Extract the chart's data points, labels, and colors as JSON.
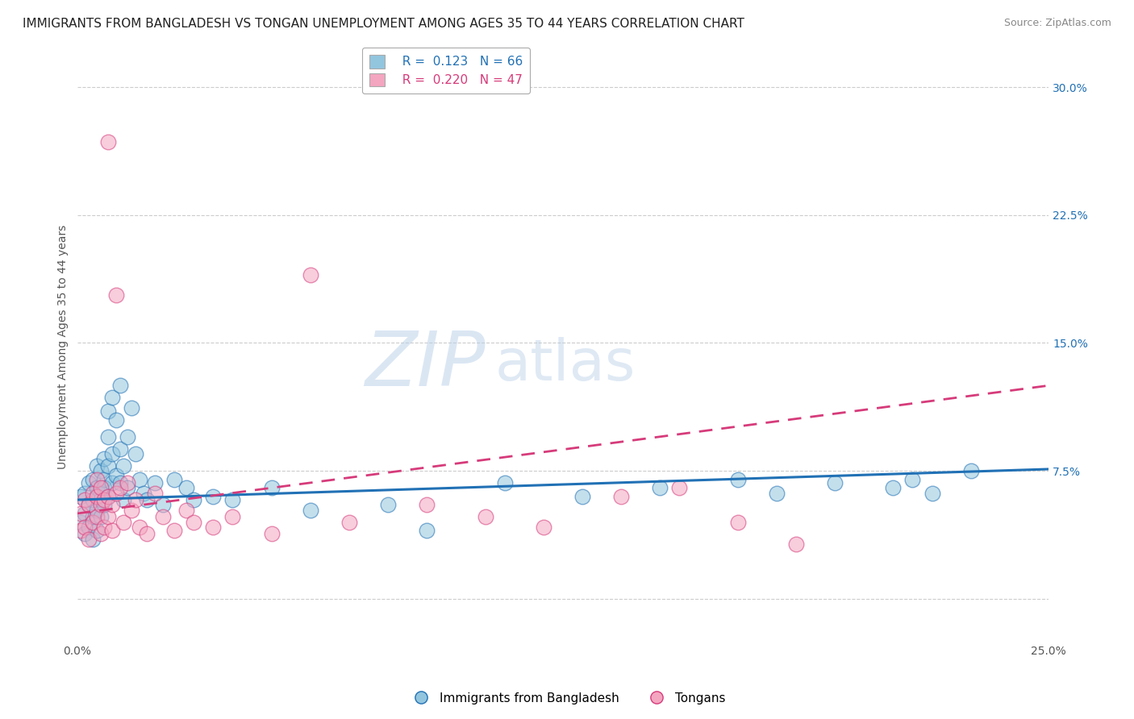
{
  "title": "IMMIGRANTS FROM BANGLADESH VS TONGAN UNEMPLOYMENT AMONG AGES 35 TO 44 YEARS CORRELATION CHART",
  "source": "Source: ZipAtlas.com",
  "ylabel": "Unemployment Among Ages 35 to 44 years",
  "xlim": [
    0.0,
    0.25
  ],
  "ylim": [
    -0.025,
    0.32
  ],
  "xticks": [
    0.0,
    0.05,
    0.1,
    0.15,
    0.2,
    0.25
  ],
  "xticklabels": [
    "0.0%",
    "",
    "",
    "",
    "",
    "25.0%"
  ],
  "ytick_positions": [
    0.0,
    0.075,
    0.15,
    0.225,
    0.3
  ],
  "yticklabels_right": [
    "",
    "7.5%",
    "15.0%",
    "22.5%",
    "30.0%"
  ],
  "legend1_r": "0.123",
  "legend1_n": "66",
  "legend2_r": "0.220",
  "legend2_n": "47",
  "color_blue": "#92c5de",
  "color_pink": "#f4a5c0",
  "color_blue_line": "#2171b5",
  "color_pink_line": "#d63b7a",
  "watermark_zip": "ZIP",
  "watermark_atlas": "atlas",
  "blue_scatter_x": [
    0.001,
    0.001,
    0.002,
    0.002,
    0.002,
    0.003,
    0.003,
    0.003,
    0.004,
    0.004,
    0.004,
    0.004,
    0.005,
    0.005,
    0.005,
    0.005,
    0.006,
    0.006,
    0.006,
    0.006,
    0.007,
    0.007,
    0.007,
    0.007,
    0.008,
    0.008,
    0.008,
    0.008,
    0.009,
    0.009,
    0.009,
    0.01,
    0.01,
    0.011,
    0.011,
    0.011,
    0.012,
    0.012,
    0.013,
    0.013,
    0.014,
    0.015,
    0.016,
    0.017,
    0.018,
    0.02,
    0.022,
    0.025,
    0.028,
    0.03,
    0.035,
    0.04,
    0.05,
    0.06,
    0.08,
    0.09,
    0.11,
    0.13,
    0.15,
    0.17,
    0.18,
    0.195,
    0.21,
    0.215,
    0.22,
    0.23
  ],
  "blue_scatter_y": [
    0.06,
    0.045,
    0.062,
    0.05,
    0.038,
    0.055,
    0.068,
    0.042,
    0.058,
    0.07,
    0.048,
    0.035,
    0.065,
    0.078,
    0.052,
    0.04,
    0.062,
    0.075,
    0.058,
    0.048,
    0.07,
    0.082,
    0.055,
    0.065,
    0.078,
    0.095,
    0.06,
    0.11,
    0.068,
    0.085,
    0.118,
    0.072,
    0.105,
    0.088,
    0.068,
    0.125,
    0.078,
    0.058,
    0.095,
    0.065,
    0.112,
    0.085,
    0.07,
    0.062,
    0.058,
    0.068,
    0.055,
    0.07,
    0.065,
    0.058,
    0.06,
    0.058,
    0.065,
    0.052,
    0.055,
    0.04,
    0.068,
    0.06,
    0.065,
    0.07,
    0.062,
    0.068,
    0.065,
    0.07,
    0.062,
    0.075
  ],
  "pink_scatter_x": [
    0.001,
    0.001,
    0.002,
    0.002,
    0.003,
    0.003,
    0.004,
    0.004,
    0.005,
    0.005,
    0.005,
    0.006,
    0.006,
    0.006,
    0.007,
    0.007,
    0.008,
    0.008,
    0.008,
    0.009,
    0.009,
    0.01,
    0.01,
    0.011,
    0.012,
    0.013,
    0.014,
    0.015,
    0.016,
    0.018,
    0.02,
    0.022,
    0.025,
    0.028,
    0.03,
    0.035,
    0.04,
    0.05,
    0.06,
    0.07,
    0.09,
    0.105,
    0.12,
    0.14,
    0.155,
    0.17,
    0.185
  ],
  "pink_scatter_y": [
    0.05,
    0.04,
    0.058,
    0.042,
    0.055,
    0.035,
    0.062,
    0.045,
    0.06,
    0.07,
    0.048,
    0.055,
    0.038,
    0.065,
    0.058,
    0.042,
    0.268,
    0.06,
    0.048,
    0.055,
    0.04,
    0.178,
    0.062,
    0.065,
    0.045,
    0.068,
    0.052,
    0.058,
    0.042,
    0.038,
    0.062,
    0.048,
    0.04,
    0.052,
    0.045,
    0.042,
    0.048,
    0.038,
    0.19,
    0.045,
    0.055,
    0.048,
    0.042,
    0.06,
    0.065,
    0.045,
    0.032
  ],
  "grid_color": "#cccccc",
  "background_color": "#ffffff",
  "title_fontsize": 11,
  "axis_fontsize": 10,
  "tick_fontsize": 10
}
